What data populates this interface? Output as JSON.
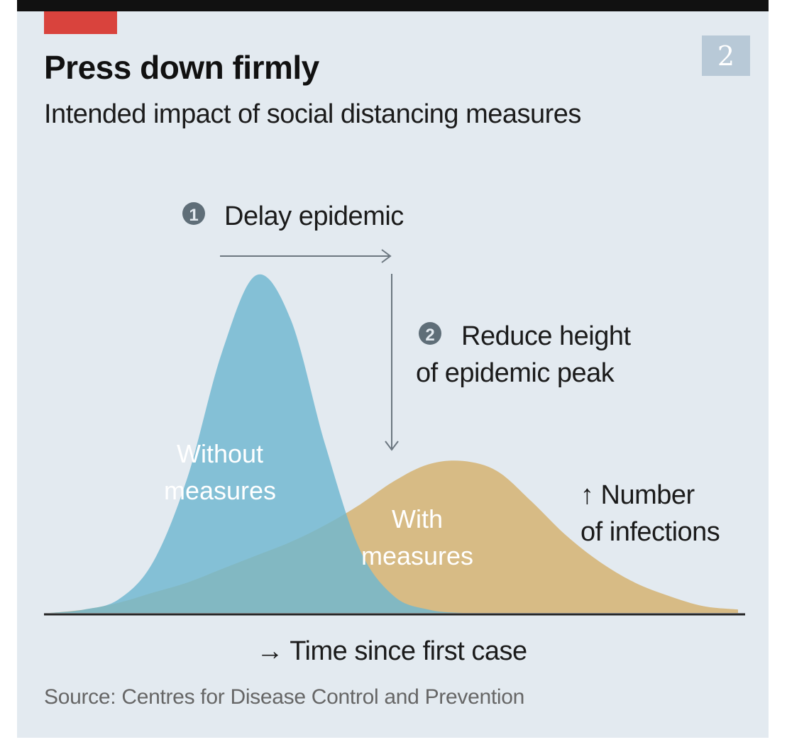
{
  "badge": "2",
  "source": "Source: Centres for Disease Control and Prevention",
  "colors": {
    "without": "#6fb7cf",
    "with": "#d6b87e",
    "accent": "#d9433d",
    "background": "#e3eaf0",
    "axis": "#222222"
  },
  "chart_data": {
    "type": "area",
    "title": "Press down firmly",
    "subtitle": "Intended impact of social distancing measures",
    "xlabel": "→ Time since first case",
    "ylabel_lines": [
      "↑ Number",
      "of infections"
    ],
    "grid": false,
    "xlim": [
      0,
      100
    ],
    "ylim": [
      0,
      1
    ],
    "x": [
      0,
      5,
      10,
      15,
      20,
      25,
      30,
      35,
      40,
      45,
      50,
      55,
      60,
      65,
      70,
      75,
      80,
      85,
      90,
      95,
      100
    ],
    "series": [
      {
        "name": "Without measures",
        "label_lines": [
          "Without",
          "measures"
        ],
        "values": [
          0.0,
          0.01,
          0.04,
          0.15,
          0.4,
          0.77,
          1.0,
          0.87,
          0.5,
          0.19,
          0.05,
          0.01,
          0.0,
          0.0,
          0.0,
          0.0,
          0.0,
          0.0,
          0.0,
          0.0,
          0.0
        ]
      },
      {
        "name": "With measures",
        "label_lines": [
          "With",
          "measures"
        ],
        "values": [
          0.0,
          0.01,
          0.03,
          0.06,
          0.09,
          0.13,
          0.17,
          0.21,
          0.26,
          0.32,
          0.39,
          0.44,
          0.45,
          0.42,
          0.33,
          0.23,
          0.15,
          0.09,
          0.05,
          0.02,
          0.01
        ]
      }
    ],
    "annotations": [
      {
        "number": "1",
        "text_lines": [
          "Delay epidemic"
        ]
      },
      {
        "number": "2",
        "text_lines": [
          "Reduce height",
          "of epidemic peak"
        ]
      }
    ]
  }
}
